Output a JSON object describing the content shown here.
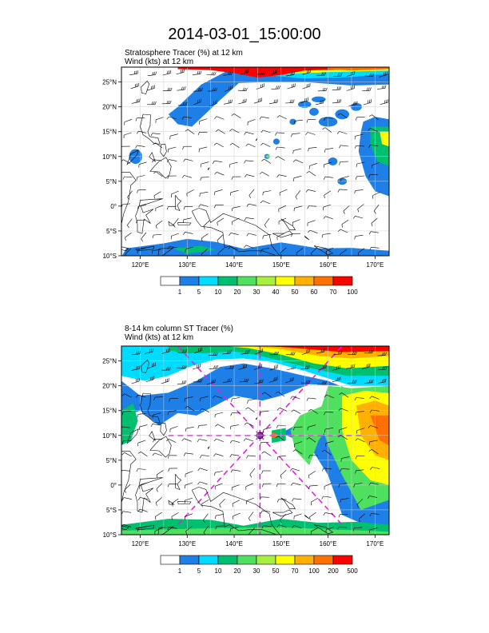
{
  "title": "2014-03-01_15:00:00",
  "panels": [
    {
      "subtitle_line1": "Stratosphere Tracer   (%)     at   12 km",
      "subtitle_line2": "Wind   (kts)      at   12 km",
      "lat_labels": [
        "25°N",
        "20°N",
        "15°N",
        "10°N",
        "5°N",
        "0°",
        "5°S",
        "10°S"
      ],
      "lon_labels": [
        "120°E",
        "130°E",
        "140°E",
        "150°E",
        "160°E",
        "170°E"
      ],
      "colorbar_labels": [
        "1",
        "5",
        "10",
        "20",
        "30",
        "40",
        "50",
        "60",
        "70",
        "100"
      ]
    },
    {
      "subtitle_line1": "8-14 km column ST Tracer   (%)",
      "subtitle_line2": "Wind   (kts)      at   12 km",
      "lat_labels": [
        "25°N",
        "20°N",
        "15°N",
        "10°N",
        "5°N",
        "0°",
        "5°S",
        "10°S"
      ],
      "lon_labels": [
        "120°E",
        "130°E",
        "140°E",
        "150°E",
        "160°E",
        "170°E"
      ],
      "colorbar_labels": [
        "1",
        "5",
        "10",
        "20",
        "30",
        "50",
        "70",
        "100",
        "200",
        "500"
      ]
    }
  ],
  "colorbar_colors": [
    "#ffffff",
    "#1e7fe6",
    "#00dcff",
    "#00c070",
    "#50e060",
    "#a8f040",
    "#ffff00",
    "#ffb000",
    "#ff7000",
    "#ff0000"
  ],
  "map_extent": {
    "lon_min": 116,
    "lon_max": 173,
    "lat_min": -10,
    "lat_max": 28
  },
  "storm_center": {
    "lon": 145.5,
    "lat": 10
  }
}
